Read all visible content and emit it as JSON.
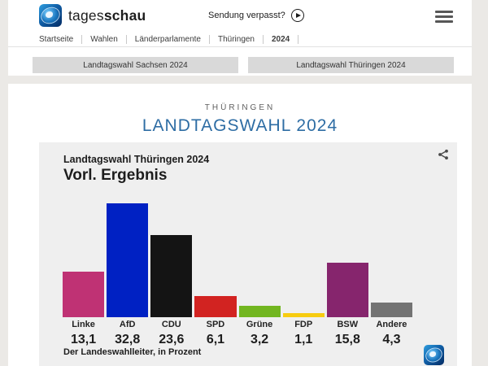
{
  "header": {
    "brand": {
      "name_regular": "tages",
      "name_bold": "schau"
    },
    "watch_link_label": "Sendung verpasst?",
    "breadcrumb": [
      "Startseite",
      "Wahlen",
      "Länderparlamente",
      "Thüringen",
      "2024"
    ],
    "tabs": [
      {
        "label": "Landtagswahl Sachsen 2024"
      },
      {
        "label": "Landtagswahl Thüringen 2024"
      }
    ],
    "icons": {
      "play": "play-circle",
      "menu": "hamburger-menu",
      "logo": "tagesschau-globe"
    }
  },
  "main": {
    "kicker": "THÜRINGEN",
    "title": "LANDTAGSWAHL 2024",
    "accent_color": "#2e6da4"
  },
  "chart_data": {
    "type": "bar",
    "title": "Landtagswahl Thüringen 2024",
    "subtitle": "Vorl. Ergebnis",
    "source": "Der Landeswahlleiter, in Prozent",
    "unit": "Prozent",
    "ylim": [
      0,
      35
    ],
    "grid": false,
    "legend": false,
    "categories": [
      "Linke",
      "AfD",
      "CDU",
      "SPD",
      "Grüne",
      "FDP",
      "BSW",
      "Andere"
    ],
    "values": [
      13.1,
      32.8,
      23.6,
      6.1,
      3.2,
      1.1,
      15.8,
      4.3
    ],
    "value_labels": [
      "13,1",
      "32,8",
      "23,6",
      "6,1",
      "3,2",
      "1,1",
      "15,8",
      "4,3"
    ],
    "colors": [
      "#bf3274",
      "#0021c3",
      "#141414",
      "#d22321",
      "#72b620",
      "#f7cc10",
      "#86256d",
      "#737373"
    ],
    "icons": {
      "share": "share-icon",
      "logo": "tagesschau-globe"
    }
  }
}
